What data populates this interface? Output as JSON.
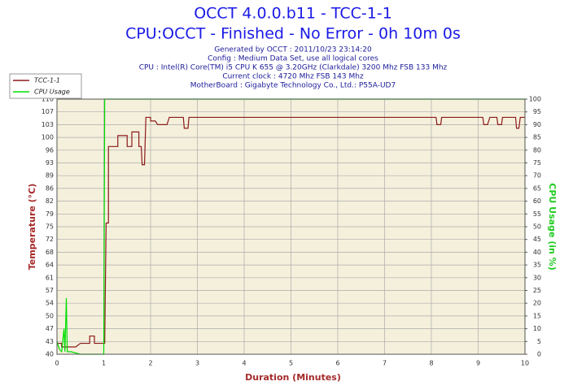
{
  "chart_data": {
    "type": "line",
    "title": "OCCT 4.0.0.b11 - TCC-1-1",
    "subtitle": "CPU:OCCT - Finished - No Error - 0h 10m 0s",
    "info": [
      "Generated by OCCT : 2011/10/23 23:14:20",
      "Config : Medium Data Set, use all logical cores",
      "CPU : Intel(R) Core(TM) i5 CPU K 655 @ 3.20GHz (Clarkdale) 3200 Mhz FSB 133 Mhz",
      "Current clock : 4720 Mhz FSB 143 Mhz",
      "MotherBoard : Gigabyte Technology Co., Ltd.: P55A-UD7"
    ],
    "x_label": "Duration (Minutes)",
    "y_label": "Temperature (°C)",
    "y2_label": "CPU Usage (in %)",
    "xlim": [
      0,
      10
    ],
    "xticks": [
      0,
      1,
      2,
      3,
      4,
      5,
      6,
      7,
      8,
      9,
      10
    ],
    "ylim": [
      40,
      110
    ],
    "yticks": [
      40,
      {
        "value": 43.5,
        "label": "43"
      },
      47,
      {
        "value": 50.5,
        "label": "50"
      },
      54,
      {
        "value": 57.5,
        "label": "57"
      },
      61,
      {
        "value": 64.5,
        "label": "64"
      },
      68,
      {
        "value": 71.5,
        "label": "72"
      },
      75,
      {
        "value": 78.5,
        "label": "79"
      },
      82,
      {
        "value": 85.5,
        "label": "86"
      },
      89,
      {
        "value": 92.5,
        "label": "93"
      },
      96,
      {
        "value": 99.5,
        "label": "100"
      },
      103,
      {
        "value": 106.5,
        "label": "107"
      },
      110
    ],
    "y2lim": [
      0,
      100
    ],
    "y2ticks": [
      0,
      5,
      10,
      15,
      20,
      25,
      30,
      35,
      40,
      45,
      50,
      55,
      60,
      65,
      70,
      75,
      80,
      85,
      90,
      95,
      100
    ],
    "grid": true,
    "legend": "top-left",
    "series": [
      {
        "name": "TCC-1-1",
        "color": "#8b1a1a",
        "x": [
          0,
          0.1,
          0.1,
          0.4,
          0.5,
          0.7,
          0.7,
          0.8,
          0.8,
          1.02,
          1.05,
          1.1,
          1.1,
          1.3,
          1.3,
          1.5,
          1.5,
          1.6,
          1.6,
          1.75,
          1.75,
          1.8,
          1.82,
          1.87,
          1.9,
          2.0,
          2.0,
          2.1,
          2.15,
          2.35,
          2.4,
          2.7,
          2.72,
          2.8,
          2.82,
          8.1,
          8.12,
          8.2,
          8.22,
          9.1,
          9.12,
          9.2,
          9.25,
          9.4,
          9.42,
          9.5,
          9.52,
          9.8,
          9.82,
          9.87,
          9.9,
          10
        ],
        "values": [
          43,
          43,
          42,
          42,
          43,
          43,
          45,
          45,
          43,
          43,
          76,
          76,
          97,
          97,
          100,
          100,
          97,
          97,
          101,
          101,
          97,
          97,
          92,
          92,
          105,
          105,
          104,
          104,
          103,
          103,
          105,
          105,
          102,
          102,
          105,
          105,
          103,
          103,
          105,
          105,
          103,
          103,
          105,
          105,
          103,
          103,
          105,
          105,
          102,
          102,
          105,
          105
        ]
      },
      {
        "name": "CPU Usage",
        "color": "#00dd00",
        "axis": "y2",
        "x": [
          0,
          0.05,
          0.1,
          0.15,
          0.17,
          0.2,
          0.22,
          0.3,
          0.5,
          1.0,
          1.02,
          10
        ],
        "values": [
          5,
          2,
          1,
          10,
          1,
          22,
          1,
          1,
          0,
          0,
          100,
          100
        ]
      }
    ]
  }
}
